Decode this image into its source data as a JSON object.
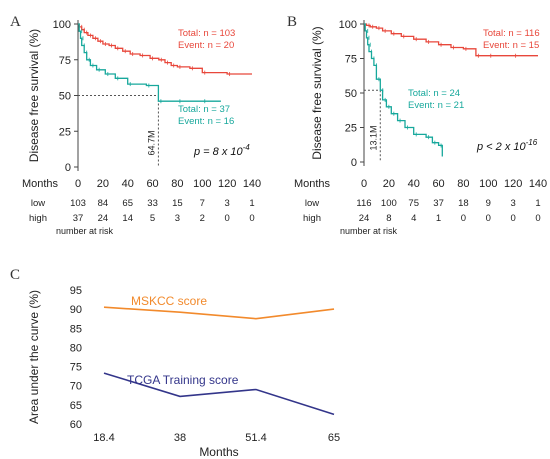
{
  "colors": {
    "low": "#e8473b",
    "high": "#17a89c",
    "mskcc": "#f28a2c",
    "tcga": "#33358a",
    "dotted": "#555555",
    "axis": "#444444"
  },
  "chart_data": [
    {
      "panel": "A",
      "type": "line",
      "chart_kind": "kaplan-meier",
      "ylabel": "Disease free survival (%)",
      "x_axis_label": "Months",
      "xlim": [
        0,
        140
      ],
      "ylim": [
        0,
        100
      ],
      "x_ticks": [
        "0",
        "20",
        "40",
        "60",
        "80",
        "100",
        "120",
        "140"
      ],
      "y_ticks": [
        "0",
        "25",
        "50",
        "75",
        "100"
      ],
      "series": [
        {
          "name": "low",
          "color": "low",
          "annotation_total": "Total: n = 103",
          "annotation_event": "Event: n = 20",
          "x": [
            0,
            1,
            3,
            5,
            8,
            12,
            16,
            20,
            25,
            30,
            36,
            42,
            50,
            58,
            65,
            70,
            75,
            80,
            90,
            100,
            120,
            140
          ],
          "y": [
            100,
            98,
            96,
            94,
            92,
            90,
            88,
            86,
            85,
            83,
            81,
            79,
            78,
            76,
            75,
            73,
            71,
            70,
            69,
            66,
            65,
            65
          ]
        },
        {
          "name": "high",
          "color": "high",
          "annotation_total": "Total: n = 37",
          "annotation_event": "Event: n = 16",
          "x": [
            0,
            1,
            2,
            3,
            5,
            7,
            10,
            15,
            22,
            30,
            40,
            55,
            64.7,
            80,
            100,
            115
          ],
          "y": [
            100,
            95,
            90,
            85,
            80,
            75,
            71,
            68,
            65,
            62,
            58,
            57,
            46,
            46,
            46,
            46
          ]
        }
      ],
      "median_label": "64.7M",
      "median_x": 64.7,
      "p_value": "p = 8 x 10",
      "p_exp": "-4",
      "risk_table": {
        "header": "Months",
        "rows": [
          {
            "label": "low",
            "color": "low",
            "values": [
              "103",
              "84",
              "65",
              "33",
              "15",
              "7",
              "3",
              "1"
            ]
          },
          {
            "label": "high",
            "color": "high",
            "values": [
              "37",
              "24",
              "14",
              "5",
              "3",
              "2",
              "0",
              "0"
            ]
          }
        ],
        "note": "number at risk"
      }
    },
    {
      "panel": "B",
      "type": "line",
      "chart_kind": "kaplan-meier",
      "ylabel": "Disease free survival (%)",
      "x_axis_label": "Months",
      "xlim": [
        0,
        140
      ],
      "ylim": [
        0,
        100
      ],
      "x_ticks": [
        "0",
        "20",
        "40",
        "60",
        "80",
        "100",
        "120",
        "140"
      ],
      "y_ticks": [
        "0",
        "25",
        "50",
        "75",
        "100"
      ],
      "series": [
        {
          "name": "low",
          "color": "low",
          "annotation_total": "Total: n = 116",
          "annotation_event": "Event: n = 15",
          "x": [
            0,
            2,
            5,
            10,
            15,
            22,
            30,
            40,
            50,
            60,
            70,
            80,
            90,
            100,
            120,
            140
          ],
          "y": [
            100,
            99,
            98,
            97,
            95,
            93,
            91,
            89,
            87,
            85,
            83,
            82,
            77,
            77,
            77,
            77
          ]
        },
        {
          "name": "high",
          "color": "high",
          "annotation_total": "Total: n = 24",
          "annotation_event": "Event: n = 21",
          "x": [
            0,
            1,
            2,
            3,
            4,
            6,
            8,
            10,
            13.1,
            15,
            18,
            22,
            27,
            33,
            40,
            50,
            55,
            60,
            63
          ],
          "y": [
            100,
            95,
            90,
            85,
            80,
            75,
            70,
            60,
            52,
            45,
            40,
            35,
            30,
            25,
            20,
            18,
            14,
            12,
            4
          ]
        }
      ],
      "median_label": "13.1M",
      "median_x": 13.1,
      "p_value": "p < 2 x 10",
      "p_exp": "-16",
      "risk_table": {
        "header": "Months",
        "rows": [
          {
            "label": "low",
            "color": "low",
            "values": [
              "116",
              "100",
              "75",
              "37",
              "18",
              "9",
              "3",
              "1"
            ]
          },
          {
            "label": "high",
            "color": "high",
            "values": [
              "24",
              "8",
              "4",
              "1",
              "0",
              "0",
              "0",
              "0"
            ]
          }
        ],
        "note": "number at risk"
      }
    },
    {
      "panel": "C",
      "type": "line",
      "xlabel": "Months",
      "ylabel": "Area under the curve (%)",
      "categories": [
        "18.4",
        "38",
        "51.4",
        "65"
      ],
      "ylim": [
        60,
        95
      ],
      "y_ticks": [
        "60",
        "65",
        "70",
        "75",
        "80",
        "85",
        "90",
        "95"
      ],
      "series": [
        {
          "name": "MSKCC score",
          "color": "mskcc",
          "values": [
            90.5,
            89.2,
            87.5,
            90.0
          ]
        },
        {
          "name": "TCGA Training score",
          "color": "tcga",
          "values": [
            73.3,
            67.2,
            69.0,
            62.5
          ]
        }
      ]
    }
  ]
}
